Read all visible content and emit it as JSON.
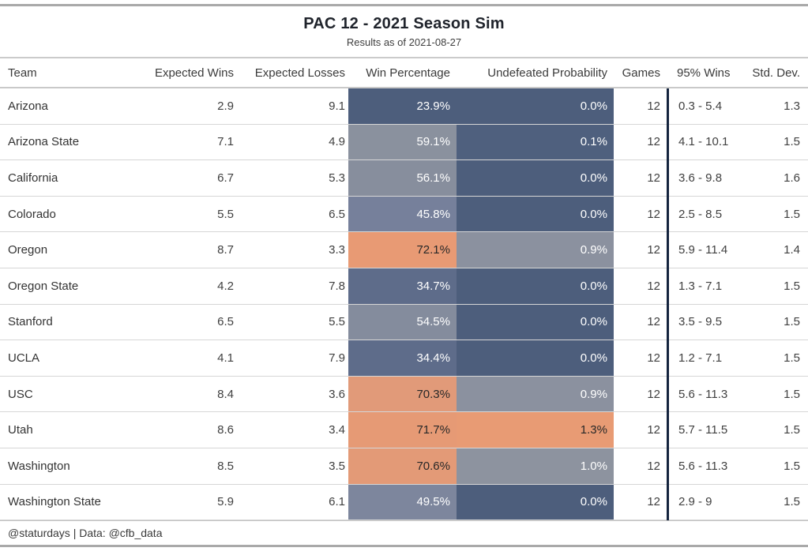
{
  "header": {
    "title": "PAC 12 - 2021 Season Sim",
    "subtitle": "Results as of 2021-08-27"
  },
  "footer": {
    "credit": "@staturdays | Data: @cfb_data"
  },
  "chart_data": {
    "type": "table",
    "title": "PAC 12 - 2021 Season Sim",
    "subtitle": "Results as of 2021-08-27",
    "columns": [
      "Team",
      "Expected Wins",
      "Expected Losses",
      "Win Percentage",
      "Undefeated Probability",
      "Games",
      "95% Wins",
      "Std. Dev."
    ],
    "heatmap": {
      "low_color": "#4d5e7c",
      "mid_color": "#8b919f",
      "high_color": "#e89b74",
      "win_pct_domain": [
        "23.9%",
        "72.1%"
      ],
      "undefeated_domain": [
        "0.0%",
        "1.3%"
      ],
      "divider_color": "#14243e"
    },
    "rows": [
      {
        "team": "Arizona",
        "expected_wins": "2.9",
        "expected_losses": "9.1",
        "win_pct": "23.9%",
        "win_pct_bg": "#4d5e7c",
        "win_pct_text": "#ffffff",
        "undefeated": "0.0%",
        "undefeated_bg": "#4d5e7c",
        "undefeated_text": "#ffffff",
        "games": "12",
        "wins_95": "0.3 - 5.4",
        "std_dev": "1.3"
      },
      {
        "team": "Arizona State",
        "expected_wins": "7.1",
        "expected_losses": "4.9",
        "win_pct": "59.1%",
        "win_pct_bg": "#8a919e",
        "win_pct_text": "#ffffff",
        "undefeated": "0.1%",
        "undefeated_bg": "#4f607e",
        "undefeated_text": "#ffffff",
        "games": "12",
        "wins_95": "4.1 - 10.1",
        "std_dev": "1.5"
      },
      {
        "team": "California",
        "expected_wins": "6.7",
        "expected_losses": "5.3",
        "win_pct": "56.1%",
        "win_pct_bg": "#878e9d",
        "win_pct_text": "#ffffff",
        "undefeated": "0.0%",
        "undefeated_bg": "#4d5e7c",
        "undefeated_text": "#ffffff",
        "games": "12",
        "wins_95": "3.6 - 9.8",
        "std_dev": "1.6"
      },
      {
        "team": "Colorado",
        "expected_wins": "5.5",
        "expected_losses": "6.5",
        "win_pct": "45.8%",
        "win_pct_bg": "#76809b",
        "win_pct_text": "#ffffff",
        "undefeated": "0.0%",
        "undefeated_bg": "#4d5e7c",
        "undefeated_text": "#ffffff",
        "games": "12",
        "wins_95": "2.5 - 8.5",
        "std_dev": "1.5"
      },
      {
        "team": "Oregon",
        "expected_wins": "8.7",
        "expected_losses": "3.3",
        "win_pct": "72.1%",
        "win_pct_bg": "#e89a74",
        "win_pct_text": "#282828",
        "undefeated": "0.9%",
        "undefeated_bg": "#8b919f",
        "undefeated_text": "#ffffff",
        "games": "12",
        "wins_95": "5.9 - 11.4",
        "std_dev": "1.4"
      },
      {
        "team": "Oregon State",
        "expected_wins": "4.2",
        "expected_losses": "7.8",
        "win_pct": "34.7%",
        "win_pct_bg": "#5e6c8a",
        "win_pct_text": "#ffffff",
        "undefeated": "0.0%",
        "undefeated_bg": "#4d5e7c",
        "undefeated_text": "#ffffff",
        "games": "12",
        "wins_95": "1.3 - 7.1",
        "std_dev": "1.5"
      },
      {
        "team": "Stanford",
        "expected_wins": "6.5",
        "expected_losses": "5.5",
        "win_pct": "54.5%",
        "win_pct_bg": "#848c9d",
        "win_pct_text": "#ffffff",
        "undefeated": "0.0%",
        "undefeated_bg": "#4d5e7c",
        "undefeated_text": "#ffffff",
        "games": "12",
        "wins_95": "3.5 - 9.5",
        "std_dev": "1.5"
      },
      {
        "team": "UCLA",
        "expected_wins": "4.1",
        "expected_losses": "7.9",
        "win_pct": "34.4%",
        "win_pct_bg": "#5e6c8a",
        "win_pct_text": "#ffffff",
        "undefeated": "0.0%",
        "undefeated_bg": "#4d5e7c",
        "undefeated_text": "#ffffff",
        "games": "12",
        "wins_95": "1.2 - 7.1",
        "std_dev": "1.5"
      },
      {
        "team": "USC",
        "expected_wins": "8.4",
        "expected_losses": "3.6",
        "win_pct": "70.3%",
        "win_pct_bg": "#e19a79",
        "win_pct_text": "#282828",
        "undefeated": "0.9%",
        "undefeated_bg": "#8b919f",
        "undefeated_text": "#ffffff",
        "games": "12",
        "wins_95": "5.6 - 11.3",
        "std_dev": "1.5"
      },
      {
        "team": "Utah",
        "expected_wins": "8.6",
        "expected_losses": "3.4",
        "win_pct": "71.7%",
        "win_pct_bg": "#e69a75",
        "win_pct_text": "#282828",
        "undefeated": "1.3%",
        "undefeated_bg": "#e89b74",
        "undefeated_text": "#282828",
        "games": "12",
        "wins_95": "5.7 - 11.5",
        "std_dev": "1.5"
      },
      {
        "team": "Washington",
        "expected_wins": "8.5",
        "expected_losses": "3.5",
        "win_pct": "70.6%",
        "win_pct_bg": "#e39a77",
        "win_pct_text": "#282828",
        "undefeated": "1.0%",
        "undefeated_bg": "#8d939f",
        "undefeated_text": "#ffffff",
        "games": "12",
        "wins_95": "5.6 - 11.3",
        "std_dev": "1.5"
      },
      {
        "team": "Washington State",
        "expected_wins": "5.9",
        "expected_losses": "6.1",
        "win_pct": "49.5%",
        "win_pct_bg": "#7d869d",
        "win_pct_text": "#ffffff",
        "undefeated": "0.0%",
        "undefeated_bg": "#4d5e7c",
        "undefeated_text": "#ffffff",
        "games": "12",
        "wins_95": "2.9 - 9",
        "std_dev": "1.5"
      }
    ]
  }
}
